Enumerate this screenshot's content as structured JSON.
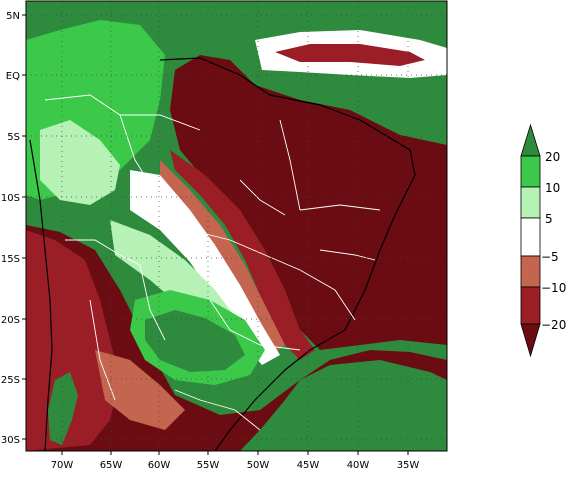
{
  "map": {
    "lon_labels": [
      "70W",
      "65W",
      "60W",
      "55W",
      "50W",
      "45W",
      "40W",
      "35W"
    ],
    "lat_labels": [
      "5N",
      "EQ",
      "5S",
      "10S",
      "15S",
      "20S",
      "25S",
      "30S"
    ],
    "lon_values": [
      -70,
      -65,
      -60,
      -55,
      -50,
      -45,
      -40,
      -35
    ],
    "lat_values": [
      5,
      0,
      -5,
      -10,
      -15,
      -20,
      -25,
      -30
    ],
    "extent": {
      "lon_min": -74.3,
      "lon_max": -32.5,
      "lat_max": 6.5,
      "lat_min": -33.2
    },
    "grid": "dotted"
  },
  "colorbar": {
    "levels": [
      "20",
      "10",
      "5",
      "−5",
      "−10",
      "−20"
    ],
    "bins": [
      {
        "range": "> 20",
        "color": "#2e8b3e"
      },
      {
        "range": "10 to 20",
        "color": "#3cc94a"
      },
      {
        "range": "5 to 10",
        "color": "#b6f1b6"
      },
      {
        "range": "-5 to 5",
        "color": "#ffffff"
      },
      {
        "range": "-10 to -5",
        "color": "#c4654f"
      },
      {
        "range": "-20 to -10",
        "color": "#9b1e27"
      },
      {
        "range": "< -20",
        "color": "#6b0b12"
      }
    ]
  },
  "colors": {
    "dark_green": "#2e8b3e",
    "green": "#3cc94a",
    "light_green": "#b6f1b6",
    "white": "#ffffff",
    "salmon": "#c4654f",
    "red": "#9b1e27",
    "dark_red": "#6b0b12"
  }
}
